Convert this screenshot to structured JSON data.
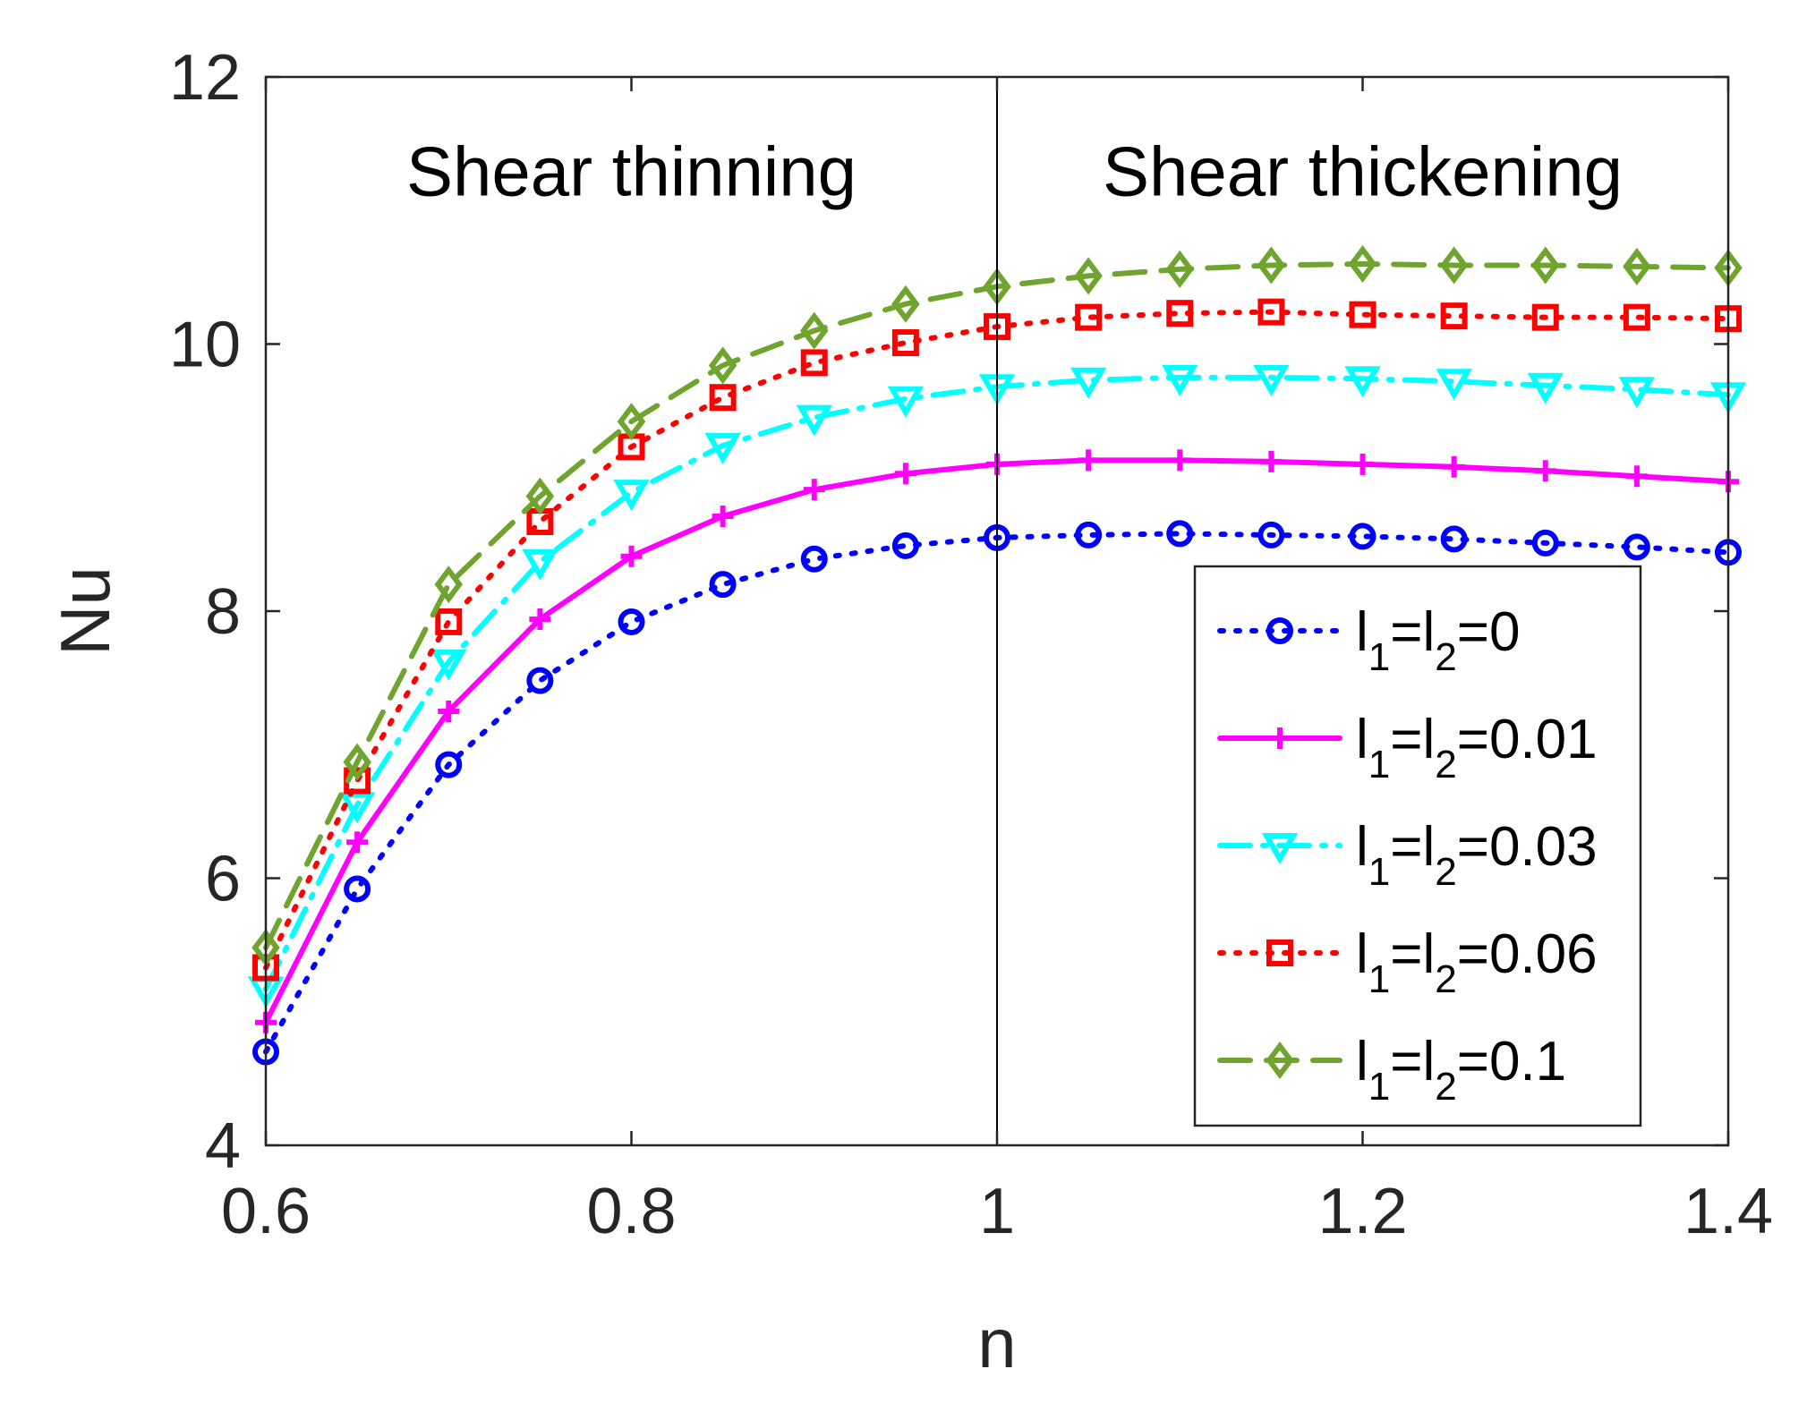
{
  "chart_data": {
    "type": "line",
    "title": "",
    "xlabel": "n",
    "ylabel": "Nu",
    "xlim": [
      0.6,
      1.4
    ],
    "ylim": [
      4,
      12
    ],
    "xticks": [
      0.6,
      0.8,
      1,
      1.2,
      1.4
    ],
    "xtick_labels": [
      "0.6",
      "0.8",
      "1",
      "1.2",
      "1.4"
    ],
    "yticks": [
      4,
      6,
      8,
      10,
      12
    ],
    "ytick_labels": [
      "4",
      "6",
      "8",
      "10",
      "12"
    ],
    "grid": false,
    "legend_position": "bottom-right",
    "divider_x": 1,
    "annotations": [
      {
        "text": "Shear thinning",
        "x": 0.8,
        "y": 11.3
      },
      {
        "text": "Shear thickening",
        "x": 1.2,
        "y": 11.3
      }
    ],
    "x": [
      0.6,
      0.65,
      0.7,
      0.75,
      0.8,
      0.85,
      0.9,
      0.95,
      1.0,
      1.05,
      1.1,
      1.15,
      1.2,
      1.25,
      1.3,
      1.35,
      1.4
    ],
    "series": [
      {
        "name": "l1=l2=0",
        "legend_parts": [
          "l",
          "1",
          "=l",
          "2",
          "=0"
        ],
        "color": "#0000ff",
        "dash": "dotted",
        "marker": "circle",
        "values": [
          4.7,
          5.92,
          6.85,
          7.48,
          7.92,
          8.2,
          8.39,
          8.49,
          8.55,
          8.57,
          8.58,
          8.57,
          8.56,
          8.54,
          8.51,
          8.48,
          8.44
        ]
      },
      {
        "name": "l1=l2=0.01",
        "legend_parts": [
          "l",
          "1",
          "=l",
          "2",
          "=0.01"
        ],
        "color": "#ff00ff",
        "dash": "solid",
        "marker": "plus",
        "values": [
          4.92,
          6.27,
          7.25,
          7.94,
          8.41,
          8.71,
          8.91,
          9.03,
          9.1,
          9.13,
          9.13,
          9.12,
          9.1,
          9.08,
          9.05,
          9.01,
          8.97
        ]
      },
      {
        "name": "l1=l2=0.03",
        "legend_parts": [
          "l",
          "1",
          "=l",
          "2",
          "=0.03"
        ],
        "color": "#00ffff",
        "dash": "dashdot",
        "marker": "triangle-down",
        "values": [
          5.17,
          6.55,
          7.62,
          8.37,
          8.89,
          9.24,
          9.45,
          9.59,
          9.68,
          9.73,
          9.75,
          9.75,
          9.74,
          9.72,
          9.69,
          9.66,
          9.62
        ]
      },
      {
        "name": "l1=l2=0.06",
        "legend_parts": [
          "l",
          "1",
          "=l",
          "2",
          "=0.06"
        ],
        "color": "#ff0000",
        "dash": "dotted",
        "marker": "square",
        "values": [
          5.33,
          6.73,
          7.92,
          8.67,
          9.23,
          9.6,
          9.86,
          10.01,
          10.13,
          10.2,
          10.23,
          10.24,
          10.22,
          10.21,
          10.2,
          10.2,
          10.19
        ]
      },
      {
        "name": "l1=l2=0.1",
        "legend_parts": [
          "l",
          "1",
          "=l",
          "2",
          "=0.1"
        ],
        "color": "#6fa52f",
        "dash": "dashed",
        "marker": "diamond",
        "values": [
          5.48,
          6.87,
          8.2,
          8.86,
          9.42,
          9.84,
          10.1,
          10.3,
          10.43,
          10.51,
          10.56,
          10.59,
          10.6,
          10.59,
          10.59,
          10.58,
          10.57
        ]
      }
    ]
  }
}
